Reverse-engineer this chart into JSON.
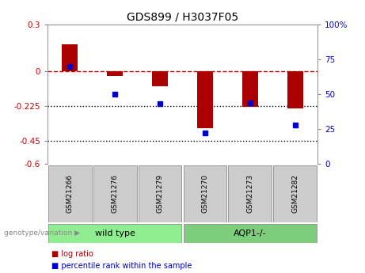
{
  "title": "GDS899 / H3037F05",
  "samples": [
    "GSM21266",
    "GSM21276",
    "GSM21279",
    "GSM21270",
    "GSM21273",
    "GSM21282"
  ],
  "log_ratio": [
    0.17,
    -0.03,
    -0.1,
    -0.37,
    -0.23,
    -0.24
  ],
  "percentile_rank": [
    70,
    50,
    43,
    22,
    44,
    28
  ],
  "groups": [
    {
      "label": "wild type",
      "indices": [
        0,
        1,
        2
      ],
      "color": "#90EE90"
    },
    {
      "label": "AQP1-/-",
      "indices": [
        3,
        4,
        5
      ],
      "color": "#7CCD7C"
    }
  ],
  "left_yticks": [
    0.3,
    0.0,
    -0.225,
    -0.45,
    -0.6
  ],
  "left_yticklabels": [
    "0.3",
    "0",
    "-0.225",
    "-0.45",
    "-0.6"
  ],
  "right_yticks": [
    100,
    75,
    50,
    25,
    0
  ],
  "right_yticklabels": [
    "100%",
    "75",
    "50",
    "25",
    "0"
  ],
  "bar_color": "#AA0000",
  "dot_color": "#0000CC",
  "dashed_line_color": "#CC0000",
  "dotted_line_color": "#000000",
  "bg_color": "#FFFFFF",
  "plot_bg_color": "#FFFFFF",
  "tick_label_color_left": "#CC0000",
  "tick_label_color_right": "#0000CC",
  "bar_width": 0.35,
  "ylim_left": [
    -0.6,
    0.3
  ],
  "ylim_right": [
    0,
    100
  ],
  "legend_log_ratio": "log ratio",
  "legend_percentile": "percentile rank within the sample",
  "group_label": "genotype/variation",
  "sample_box_color": "#CCCCCC",
  "sample_box_edge": "#999999"
}
